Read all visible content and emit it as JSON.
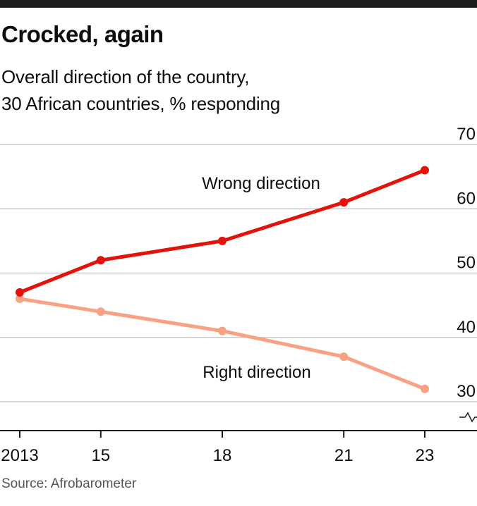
{
  "colors": {
    "wrong": "#e3120b",
    "right": "#f9a183",
    "grid": "#c9c9c9",
    "axis": "#1a1a1a",
    "text": "#0d0d0d"
  },
  "header": {
    "title": "Crocked, again",
    "subtitle_line1": "Overall direction of the country,",
    "subtitle_line2": "30 African countries, % responding"
  },
  "footer": {
    "source": "Source: Afrobarometer"
  },
  "chart_data": {
    "type": "line",
    "x": [
      2013,
      2015,
      2018,
      2021,
      2023
    ],
    "x_tick_labels": [
      "2013",
      "15",
      "18",
      "21",
      "23"
    ],
    "ylim": [
      30,
      70
    ],
    "y_ticks": [
      30,
      40,
      50,
      60,
      70
    ],
    "y_axis_side": "right",
    "y_axis_break": true,
    "grid": true,
    "legend": "inline labels",
    "series": [
      {
        "name": "Wrong direction",
        "color": "#e3120b",
        "values": [
          47,
          52,
          55,
          61,
          66
        ]
      },
      {
        "name": "Right direction",
        "color": "#f9a183",
        "values": [
          46,
          44,
          41,
          37,
          32
        ]
      }
    ]
  }
}
